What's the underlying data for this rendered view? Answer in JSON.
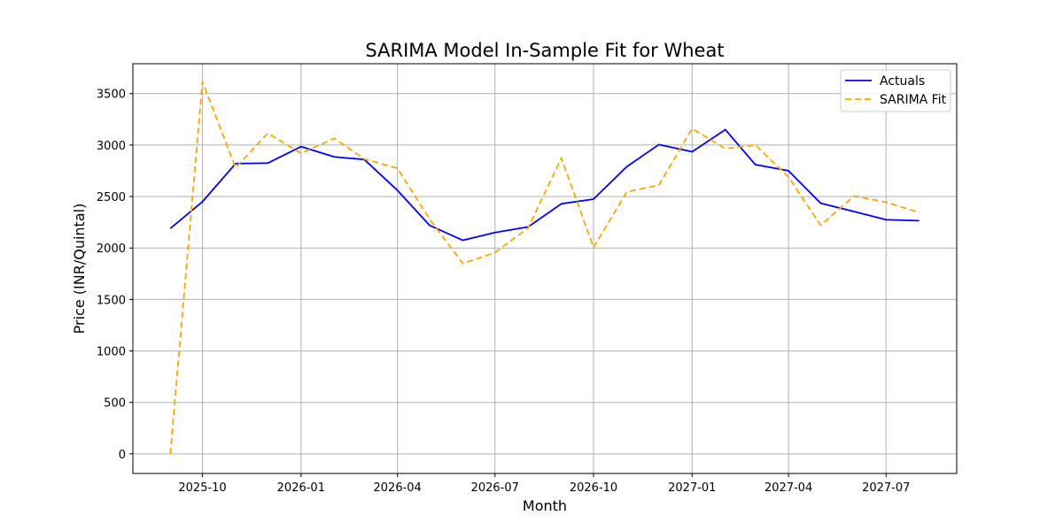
{
  "chart_data": {
    "type": "line",
    "title": "SARIMA Model In-Sample Fit for Wheat",
    "xlabel": "Month",
    "ylabel": "Price (INR/Quintal)",
    "x": [
      "2025-09",
      "2025-10",
      "2025-11",
      "2025-12",
      "2026-01",
      "2026-02",
      "2026-03",
      "2026-04",
      "2026-05",
      "2026-06",
      "2026-07",
      "2026-08",
      "2026-09",
      "2026-10",
      "2026-11",
      "2026-12",
      "2027-01",
      "2027-02",
      "2027-03",
      "2027-04",
      "2027-05",
      "2027-06",
      "2027-07",
      "2027-08"
    ],
    "x_ticks": [
      "2025-10",
      "2026-01",
      "2026-04",
      "2026-07",
      "2026-10",
      "2027-01",
      "2027-04",
      "2027-07"
    ],
    "y_ticks": [
      0,
      500,
      1000,
      1500,
      2000,
      2500,
      3000,
      3500
    ],
    "ylim": [
      -190,
      3790
    ],
    "grid": true,
    "legend_position": "top-right",
    "series": [
      {
        "name": "Actuals",
        "color": "#0000ff",
        "style": "solid",
        "values": [
          2190,
          2450,
          2820,
          2825,
          2985,
          2885,
          2860,
          2560,
          2220,
          2075,
          2150,
          2205,
          2430,
          2475,
          2790,
          3005,
          2935,
          3150,
          2810,
          2750,
          2435,
          2355,
          2275,
          2265
        ]
      },
      {
        "name": "SARIMA Fit",
        "color": "#ffa500",
        "style": "dashed",
        "values": [
          0,
          3615,
          2780,
          3115,
          2920,
          3065,
          2865,
          2775,
          2280,
          1850,
          1955,
          2195,
          2875,
          2005,
          2545,
          2610,
          3160,
          2965,
          3000,
          2690,
          2220,
          2505,
          2445,
          2345
        ]
      }
    ]
  }
}
